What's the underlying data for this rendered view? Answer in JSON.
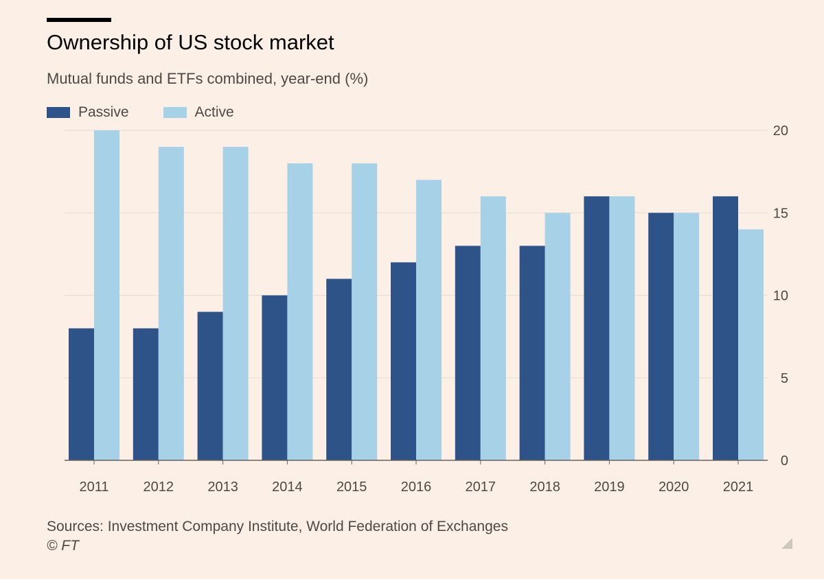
{
  "colors": {
    "background": "#fcf0e6",
    "passive": "#2d5389",
    "active": "#a7d1e6",
    "gridline": "#e6dcd2",
    "baseline": "#66605c",
    "tick_text": "#4d4845"
  },
  "chart_data": {
    "type": "bar",
    "title": "Ownership of US stock market",
    "subtitle": "Mutual funds and ETFs combined, year-end (%)",
    "categories": [
      "2011",
      "2012",
      "2013",
      "2014",
      "2015",
      "2016",
      "2017",
      "2018",
      "2019",
      "2020",
      "2021"
    ],
    "series": [
      {
        "name": "Passive",
        "color": "#2d5389",
        "values": [
          8,
          8,
          9,
          10,
          11,
          12,
          13,
          13,
          16,
          15,
          16
        ]
      },
      {
        "name": "Active",
        "color": "#a7d1e6",
        "values": [
          20,
          19,
          19,
          18,
          18,
          17,
          16,
          15,
          16,
          15,
          14
        ]
      }
    ],
    "ylim": [
      0,
      20
    ],
    "yticks": [
      "0",
      "5",
      "10",
      "15",
      "20"
    ],
    "y_axis_position": "right",
    "grid": true,
    "legend_position": "top-left",
    "source": "Sources: Investment Company Institute, World Federation of Exchanges",
    "copyright": "© FT"
  }
}
